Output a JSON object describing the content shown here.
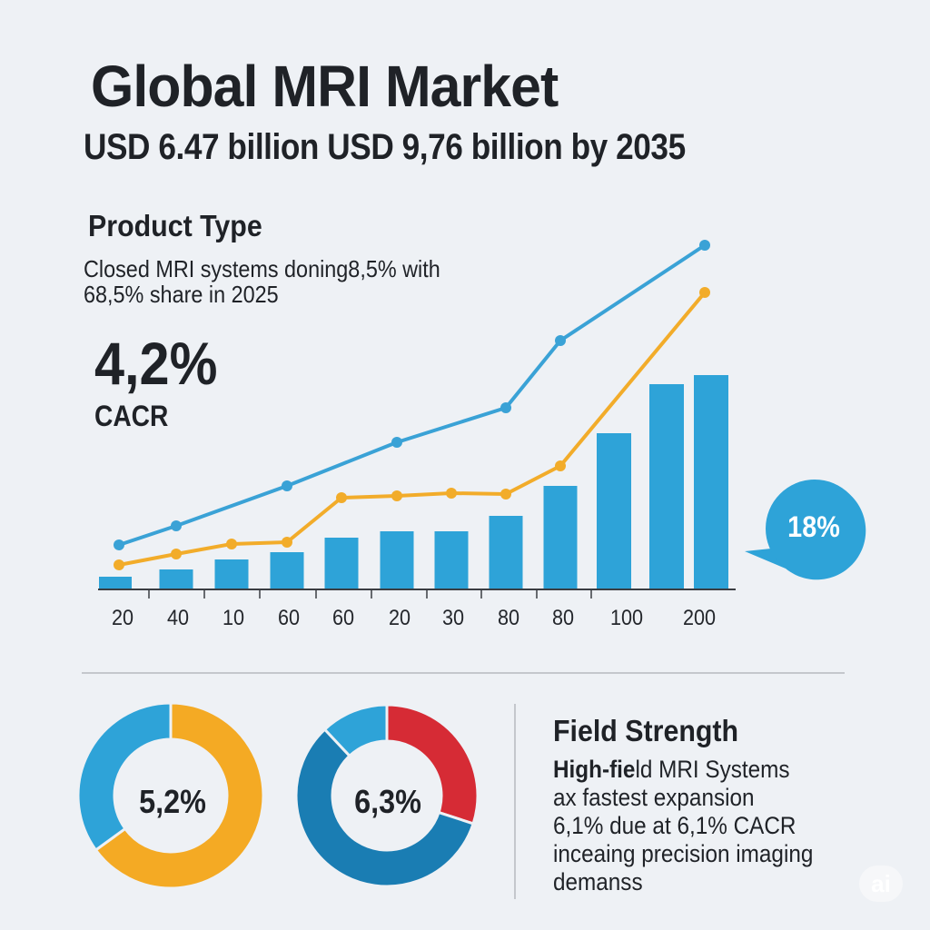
{
  "header": {
    "title": "Global MRI Market",
    "subtitle": "USD 6.47 billion USD 9,76 billion by 2035"
  },
  "product_type": {
    "title": "Product Type",
    "description_line1": "Closed MRI systems doning8,5% with",
    "description_line2": "68,5% share in 2025",
    "cagr_value": "4,2%",
    "cagr_label": "CACR"
  },
  "callout": {
    "value": "18%"
  },
  "field_strength": {
    "title": "Field Strength",
    "line1_bold": "High-fie",
    "line1_rest": "ld MRI Systems",
    "line2": "ax fastest expansion",
    "line3": "6,1% due at 6,1% CACR",
    "line4": "inceaing precision imaging",
    "line5": "demanss"
  },
  "watermark": {
    "text": "ai"
  },
  "colors": {
    "bar_blue": "#2ea3d8",
    "line_blue": "#3aa2d6",
    "line_orange": "#f2ac2a",
    "donut_orange": "#f4aa24",
    "donut_red": "#d62b35",
    "donut_dark_blue": "#1a7db3",
    "text_dark": "#1f2227",
    "background": "#eef1f5"
  },
  "chart_data": [
    {
      "type": "bar",
      "title": "",
      "categories": [
        "20",
        "40",
        "10",
        "60",
        "60",
        "20",
        "30",
        "80",
        "80",
        "100",
        "",
        "200"
      ],
      "tick_labels": [
        "20",
        "40",
        "10",
        "60",
        "60",
        "20",
        "30",
        "80",
        "80",
        "100",
        "200"
      ],
      "series": [
        {
          "name": "bars",
          "type": "bar",
          "values": [
            13,
            21,
            32,
            40,
            56,
            63,
            63,
            80,
            113,
            171,
            225,
            235
          ]
        },
        {
          "name": "blue-line",
          "type": "line",
          "points": [
            [
              0,
              48
            ],
            [
              1,
              69
            ],
            [
              3,
              113
            ],
            [
              5,
              161
            ],
            [
              7,
              199
            ],
            [
              8,
              273
            ],
            [
              11,
              378
            ]
          ]
        },
        {
          "name": "orange-line",
          "type": "line",
          "points": [
            [
              0,
              26
            ],
            [
              1,
              38
            ],
            [
              2,
              49
            ],
            [
              3,
              51
            ],
            [
              4,
              100
            ],
            [
              5,
              102
            ],
            [
              6,
              105
            ],
            [
              7,
              104
            ],
            [
              8,
              135
            ],
            [
              11,
              326
            ]
          ]
        }
      ],
      "ylim": [
        0,
        400
      ],
      "xlabel": "",
      "ylabel": "",
      "grid": false,
      "annotation": "18%"
    },
    {
      "type": "pie",
      "style": "donut",
      "center_label": "5,2%",
      "slices": [
        {
          "name": "orange",
          "value": 65
        },
        {
          "name": "blue",
          "value": 35
        }
      ]
    },
    {
      "type": "pie",
      "style": "donut",
      "center_label": "6,3%",
      "slices": [
        {
          "name": "red",
          "value": 30
        },
        {
          "name": "dark-blue",
          "value": 58
        },
        {
          "name": "light-blue",
          "value": 12
        }
      ]
    }
  ]
}
